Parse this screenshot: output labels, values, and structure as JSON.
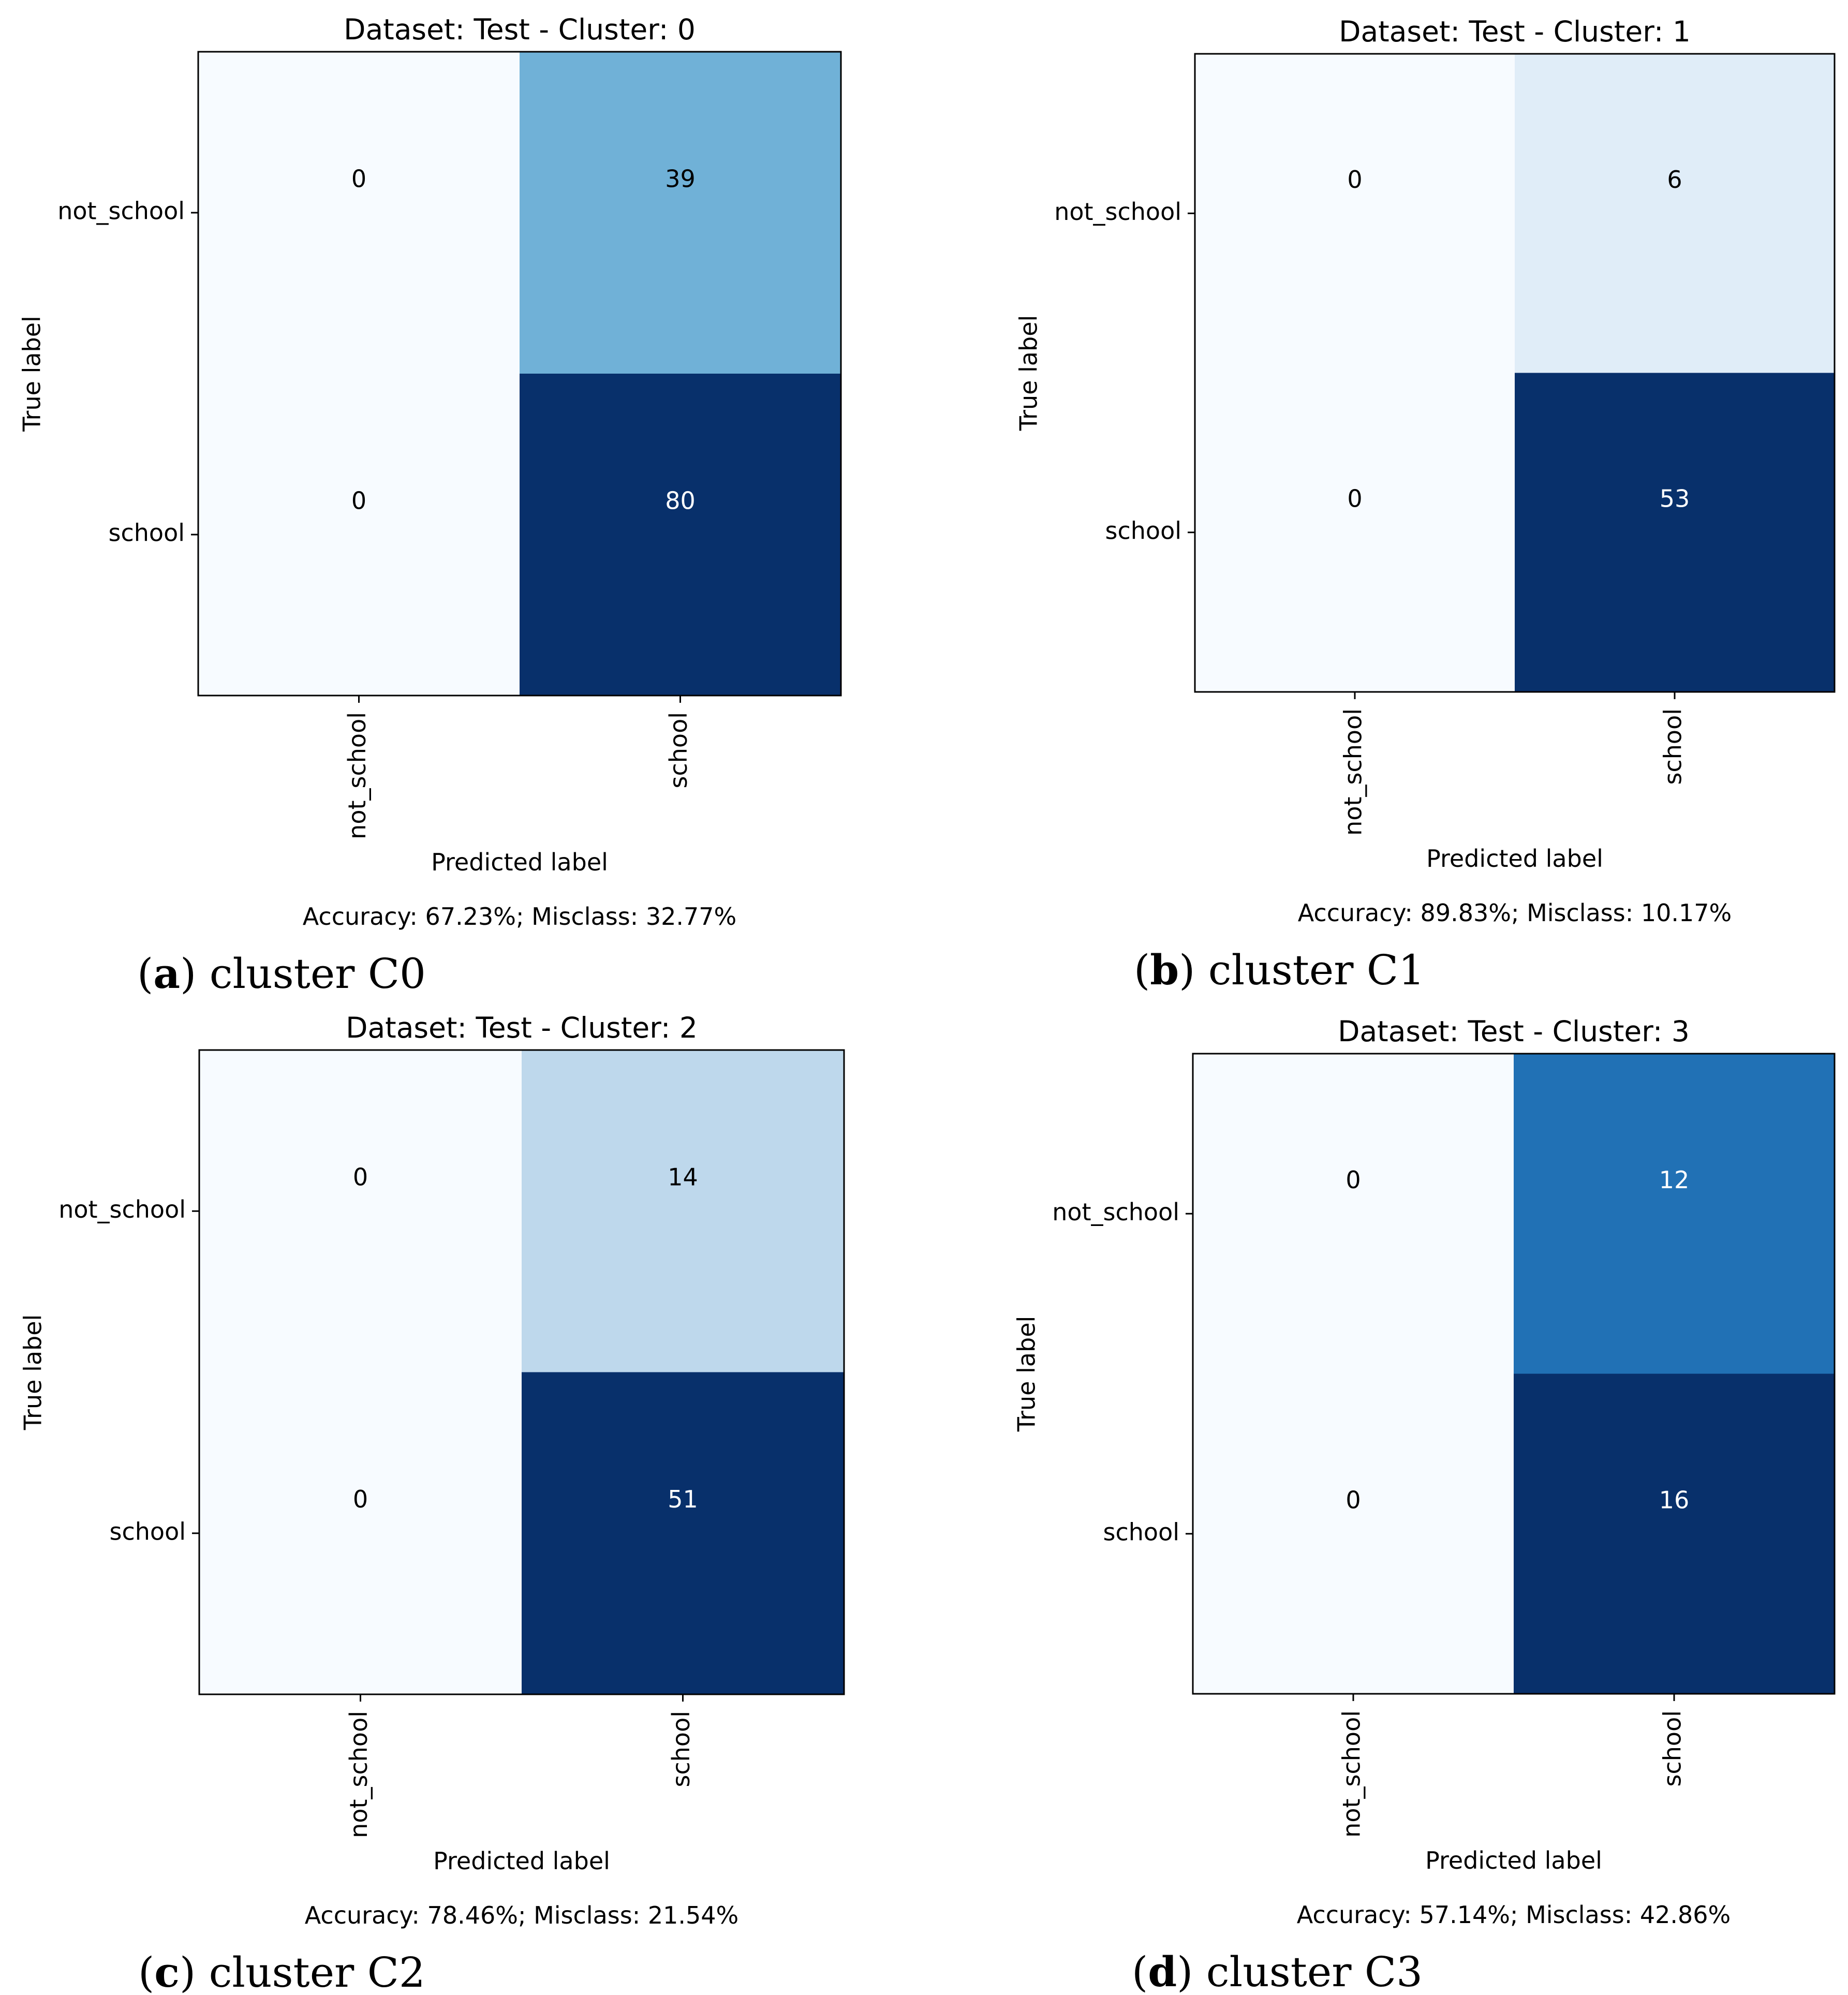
{
  "figure": {
    "panels": [
      {
        "caption_letter": "a",
        "caption_text": "cluster C0",
        "accuracy_text": "Accuracy: 67.23%; Misclass: 32.77%"
      },
      {
        "caption_letter": "b",
        "caption_text": "cluster C1",
        "accuracy_text": "Accuracy: 89.83%; Misclass: 10.17%"
      },
      {
        "caption_letter": "c",
        "caption_text": "cluster C2",
        "accuracy_text": "Accuracy: 78.46%; Misclass: 21.54%"
      },
      {
        "caption_letter": "d",
        "caption_text": "cluster C3",
        "accuracy_text": "Accuracy: 57.14%; Misclass: 42.86%"
      }
    ]
  },
  "chart_data": [
    {
      "type": "heatmap",
      "title": "Dataset: Test - Cluster: 0",
      "xlabel": "Predicted label",
      "ylabel": "True label",
      "x_categories": [
        "not_school",
        "school"
      ],
      "y_categories": [
        "not_school",
        "school"
      ],
      "values": [
        [
          0,
          39
        ],
        [
          0,
          80
        ]
      ],
      "colormap": "Blues",
      "grid": false
    },
    {
      "type": "heatmap",
      "title": "Dataset: Test - Cluster: 1",
      "xlabel": "Predicted label",
      "ylabel": "True label",
      "x_categories": [
        "not_school",
        "school"
      ],
      "y_categories": [
        "not_school",
        "school"
      ],
      "values": [
        [
          0,
          6
        ],
        [
          0,
          53
        ]
      ],
      "colormap": "Blues",
      "grid": false
    },
    {
      "type": "heatmap",
      "title": "Dataset: Test - Cluster: 2",
      "xlabel": "Predicted label",
      "ylabel": "True label",
      "x_categories": [
        "not_school",
        "school"
      ],
      "y_categories": [
        "not_school",
        "school"
      ],
      "values": [
        [
          0,
          14
        ],
        [
          0,
          51
        ]
      ],
      "colormap": "Blues",
      "grid": false
    },
    {
      "type": "heatmap",
      "title": "Dataset: Test - Cluster: 3",
      "xlabel": "Predicted label",
      "ylabel": "True label",
      "x_categories": [
        "not_school",
        "school"
      ],
      "y_categories": [
        "not_school",
        "school"
      ],
      "values": [
        [
          0,
          12
        ],
        [
          0,
          16
        ]
      ],
      "colormap": "Blues",
      "grid": false
    }
  ]
}
